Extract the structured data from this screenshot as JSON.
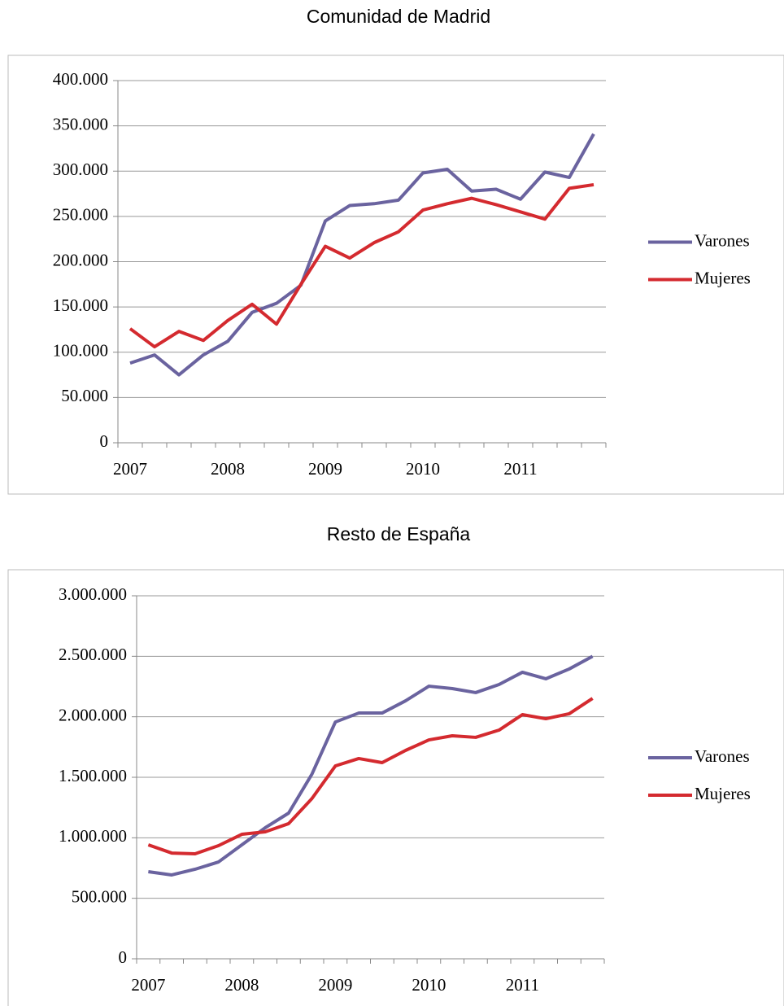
{
  "chart_data": [
    {
      "type": "line",
      "title": "Comunidad de Madrid",
      "categories": [
        "2007",
        null,
        null,
        null,
        "2008",
        null,
        null,
        null,
        "2009",
        null,
        null,
        null,
        "2010",
        null,
        null,
        null,
        "2011",
        null,
        null,
        null
      ],
      "series": [
        {
          "name": "Varones",
          "color": "#6a639f",
          "values": [
            88000,
            97000,
            75000,
            97000,
            112000,
            144000,
            154000,
            174000,
            245000,
            262000,
            264000,
            268000,
            298000,
            302000,
            278000,
            280000,
            269000,
            299000,
            293000,
            341000
          ]
        },
        {
          "name": "Mujeres",
          "color": "#d42a2f",
          "values": [
            126000,
            106000,
            123000,
            113000,
            135000,
            153000,
            131000,
            175000,
            217000,
            204000,
            221000,
            233000,
            257000,
            264000,
            270000,
            263000,
            255000,
            247000,
            281000,
            285000
          ]
        }
      ],
      "ylim": [
        0,
        400000
      ],
      "yticks": [
        0,
        {
          "value": 50000,
          "label": "50.000"
        },
        {
          "value": 100000,
          "label": "100.000"
        },
        {
          "value": 150000,
          "label": "150.000"
        },
        {
          "value": 200000,
          "label": "200.000"
        },
        {
          "value": 250000,
          "label": "250.000"
        },
        {
          "value": 300000,
          "label": "300.000"
        },
        {
          "value": 350000,
          "label": "350.000"
        },
        {
          "value": 400000,
          "label": "400.000"
        }
      ],
      "grid": true,
      "legend": "right"
    },
    {
      "type": "line",
      "title": "Resto de España",
      "categories": [
        "2007",
        null,
        null,
        null,
        "2008",
        null,
        null,
        null,
        "2009",
        null,
        null,
        null,
        "2010",
        null,
        null,
        null,
        "2011",
        null,
        null,
        null
      ],
      "series": [
        {
          "name": "Varones",
          "color": "#6a639f",
          "values": [
            720000,
            693000,
            740000,
            800000,
            942000,
            1083000,
            1204000,
            1527000,
            1957000,
            2031000,
            2031000,
            2132000,
            2253000,
            2233000,
            2200000,
            2267000,
            2368000,
            2314000,
            2395000,
            2500000
          ]
        },
        {
          "name": "Mujeres",
          "color": "#d42a2f",
          "values": [
            942000,
            874000,
            868000,
            935000,
            1029000,
            1049000,
            1117000,
            1325000,
            1594000,
            1655000,
            1621000,
            1722000,
            1809000,
            1843000,
            1830000,
            1890000,
            2018000,
            1984000,
            2025000,
            2152000
          ]
        }
      ],
      "ylim": [
        0,
        3000000
      ],
      "yticks": [
        0,
        {
          "value": 500000,
          "label": "500.000"
        },
        {
          "value": 1000000,
          "label": "1.000.000"
        },
        {
          "value": 1500000,
          "label": "1.500.000"
        },
        {
          "value": 2000000,
          "label": "2.000.000"
        },
        {
          "value": 2500000,
          "label": "2.500.000"
        },
        {
          "value": 3000000,
          "label": "3.000.000"
        }
      ],
      "grid": true,
      "legend": "right"
    }
  ]
}
